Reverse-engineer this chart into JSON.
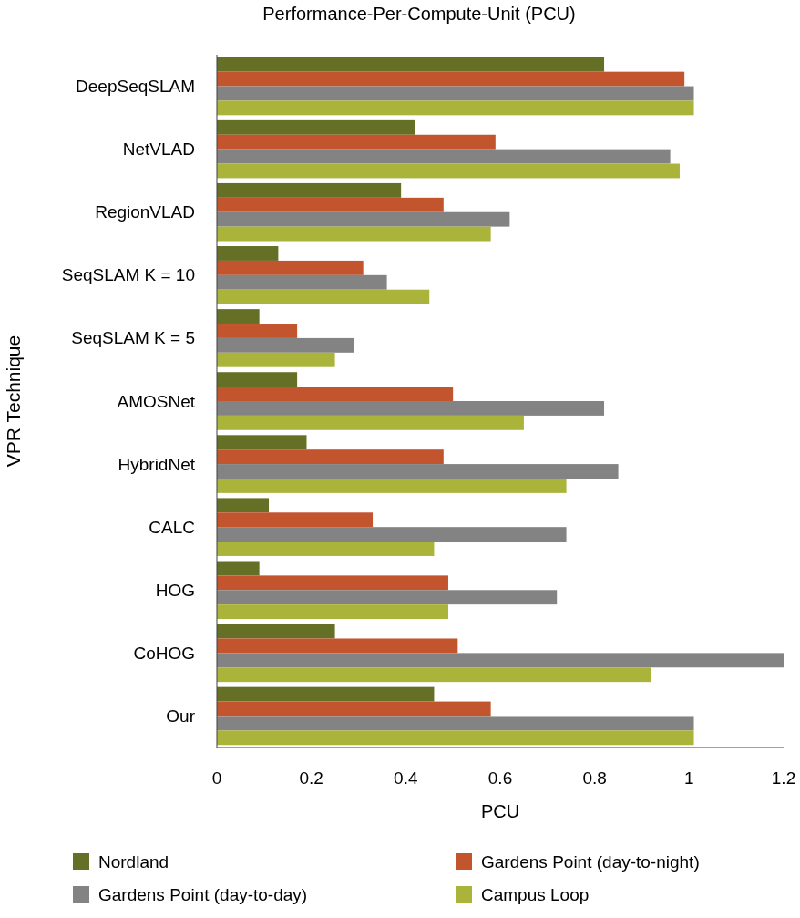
{
  "chart_data": {
    "type": "bar",
    "orientation": "horizontal",
    "title": "Performance-Per-Compute-Unit (PCU)",
    "xlabel": "PCU",
    "ylabel": "VPR Technique",
    "categories": [
      "DeepSeqSLAM",
      "NetVLAD",
      "RegionVLAD",
      "SeqSLAM K = 10",
      "SeqSLAM K = 5",
      "AMOSNet",
      "HybridNet",
      "CALC",
      "HOG",
      "CoHOG",
      "Our"
    ],
    "series": [
      {
        "name": "Nordland",
        "color": "#666f26",
        "values": [
          0.82,
          0.42,
          0.39,
          0.13,
          0.09,
          0.17,
          0.19,
          0.11,
          0.09,
          0.25,
          0.46
        ]
      },
      {
        "name": "Gardens Point (day-to-night)",
        "color": "#c3552e",
        "values": [
          0.99,
          0.59,
          0.48,
          0.31,
          0.17,
          0.5,
          0.48,
          0.33,
          0.49,
          0.51,
          0.58
        ]
      },
      {
        "name": "Gardens Point (day-to-day)",
        "color": "#838383",
        "values": [
          1.01,
          0.96,
          0.62,
          0.36,
          0.29,
          0.82,
          0.85,
          0.74,
          0.72,
          1.2,
          1.01
        ]
      },
      {
        "name": "Campus Loop",
        "color": "#aab43a",
        "values": [
          1.01,
          0.98,
          0.58,
          0.45,
          0.25,
          0.65,
          0.74,
          0.46,
          0.49,
          0.92,
          1.01
        ]
      }
    ],
    "xlim": [
      0,
      1.2
    ],
    "xticks": [
      0,
      {
        "value": 0.2,
        "label": "0.2"
      },
      {
        "value": 0.4,
        "label": "0.4"
      },
      {
        "value": 0.6,
        "label": "0.6"
      },
      {
        "value": 0.8,
        "label": "0.8"
      },
      1,
      {
        "value": 1.2,
        "label": "1.2"
      }
    ],
    "grid": false,
    "legend": "bottom"
  }
}
